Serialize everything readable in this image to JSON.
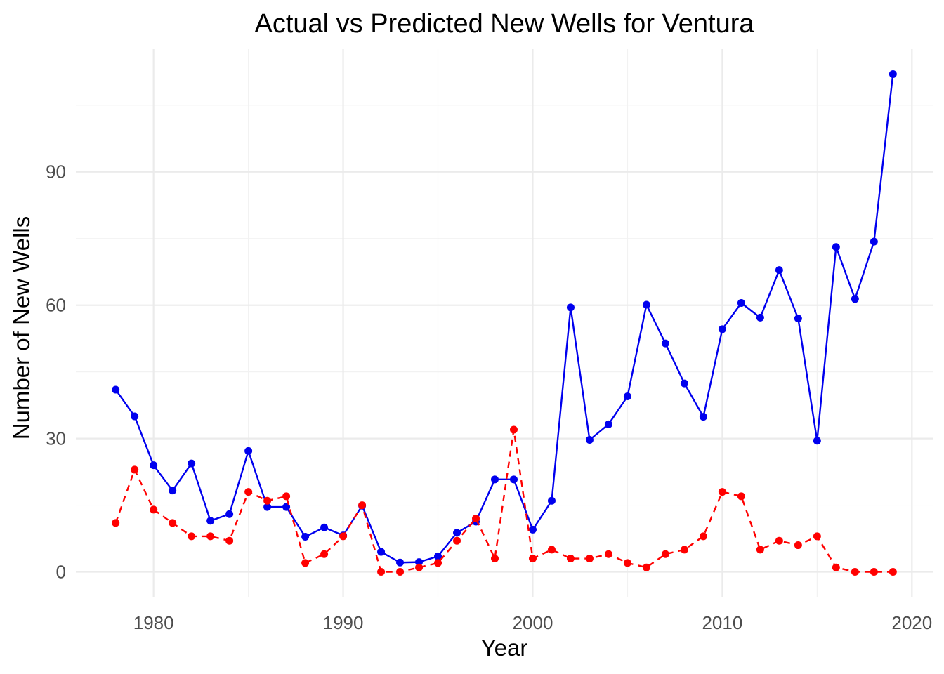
{
  "chart_data": {
    "type": "line",
    "title": "Actual vs Predicted New Wells for Ventura",
    "xlabel": "Year",
    "ylabel": "Number of New Wells",
    "xlim": [
      1975.9,
      2021.1
    ],
    "ylim": [
      -5.6,
      117.6
    ],
    "x_ticks": [
      1980,
      1990,
      2000,
      2010,
      2020
    ],
    "y_ticks": [
      0,
      30,
      60,
      90
    ],
    "grid": true,
    "legend": "none",
    "x": [
      1978,
      1979,
      1980,
      1981,
      1982,
      1983,
      1984,
      1985,
      1986,
      1987,
      1988,
      1989,
      1990,
      1991,
      1992,
      1993,
      1994,
      1995,
      1996,
      1997,
      1998,
      1999,
      2000,
      2001,
      2002,
      2003,
      2004,
      2005,
      2006,
      2007,
      2008,
      2009,
      2010,
      2011,
      2012,
      2013,
      2014,
      2015,
      2016,
      2017,
      2018,
      2019
    ],
    "series": [
      {
        "color": "#0000ee",
        "style": "solid",
        "values": [
          41,
          35,
          24,
          18.3,
          24.4,
          11.5,
          13,
          27.2,
          14.6,
          14.6,
          7.9,
          10,
          8.2,
          14.9,
          4.5,
          2.1,
          2.2,
          3.5,
          8.8,
          11.3,
          20.8,
          20.8,
          9.5,
          16,
          59.5,
          29.7,
          33.2,
          39.5,
          60.1,
          51.4,
          42.4,
          34.9,
          54.6,
          60.5,
          57.2,
          67.9,
          57,
          29.5,
          73.1,
          61.4,
          74.3,
          112
        ]
      },
      {
        "color": "#ff0000",
        "style": "dashed",
        "values": [
          11,
          23,
          14,
          11,
          8,
          8,
          7,
          18,
          16,
          17,
          2,
          4,
          8,
          15,
          0,
          0,
          1,
          2,
          7,
          12,
          3,
          32,
          3,
          5,
          3,
          3,
          4,
          2,
          1,
          4,
          5,
          8,
          18,
          17,
          5,
          7,
          6,
          8,
          1,
          0,
          0,
          0
        ]
      }
    ]
  }
}
